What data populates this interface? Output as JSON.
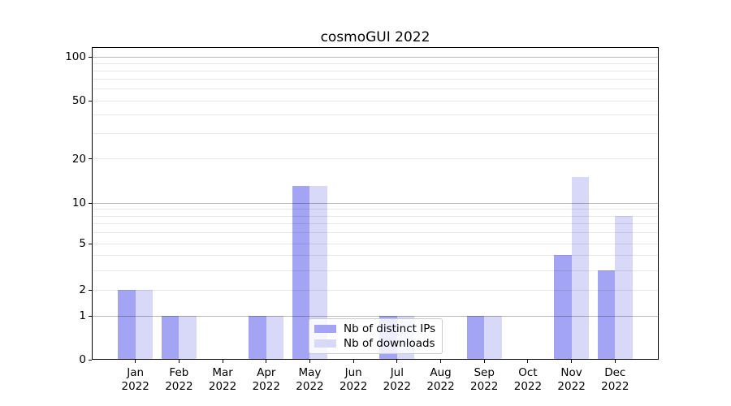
{
  "title": "cosmoGUI 2022",
  "chart_data": {
    "type": "bar",
    "title": "cosmoGUI 2022",
    "categories": [
      "Jan",
      "Feb",
      "Mar",
      "Apr",
      "May",
      "Jun",
      "Jul",
      "Aug",
      "Sep",
      "Oct",
      "Nov",
      "Dec"
    ],
    "x_tick_year": "2022",
    "series": [
      {
        "name": "Nb of distinct IPs",
        "color": "#a4a4f4",
        "values": [
          2,
          1,
          0,
          1,
          13,
          0,
          1,
          0,
          1,
          0,
          4,
          3
        ]
      },
      {
        "name": "Nb of downloads",
        "color": "#d8d8f8",
        "values": [
          2,
          1,
          0,
          1,
          13,
          0,
          1,
          0,
          1,
          0,
          15,
          8
        ]
      }
    ],
    "xlabel": "",
    "ylabel": "",
    "yscale": "symlog",
    "ylim": [
      0,
      117
    ],
    "y_ticks": [
      0,
      1,
      2,
      5,
      10,
      20,
      50,
      100
    ],
    "y_major_gridlines": [
      1,
      10,
      100
    ],
    "y_minor_gridlines": [
      2,
      3,
      4,
      5,
      6,
      7,
      8,
      9,
      20,
      30,
      40,
      50,
      60,
      70,
      80,
      90
    ],
    "grid": true,
    "legend_position": "lower center"
  },
  "colors": {
    "background": "#ffffff",
    "spine": "#000000",
    "text": "#000000",
    "major_grid_rgba": "rgba(0,0,0,0.28)",
    "minor_grid_rgba": "rgba(0,0,0,0.095)",
    "legend_border": "#cccccc",
    "legend_background": "rgba(255,255,255,0.8)"
  }
}
